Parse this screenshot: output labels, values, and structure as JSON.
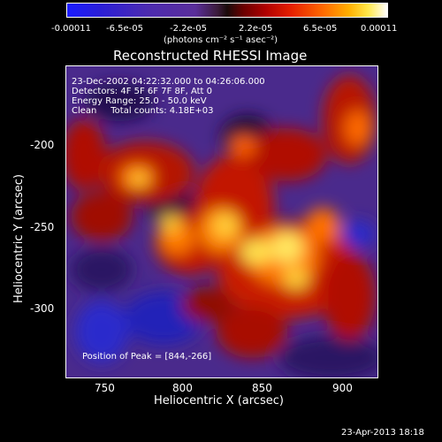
{
  "colorbar": {
    "ticks": [
      "-0.00011",
      "-6.5e-05",
      "-2.2e-05",
      "2.2e-05",
      "6.5e-05",
      "0.00011"
    ],
    "unit_label": "(photons cm⁻² s⁻¹ asec⁻²)"
  },
  "chart_data": {
    "type": "heatmap",
    "title": "Reconstructed RHESSI Image",
    "xlabel": "Heliocentric X (arcsec)",
    "ylabel": "Heliocentric Y (arcsec)",
    "xlim": [
      726,
      918
    ],
    "ylim": [
      -346,
      -154
    ],
    "x_ticks": [
      "750",
      "800",
      "850",
      "900"
    ],
    "y_ticks": [
      "-200",
      "-250",
      "-300"
    ],
    "colorscale": {
      "min": -0.00011,
      "max": 0.00011
    },
    "annotations": {
      "time_range": "23-Dec-2002 04:22:32.000 to 04:26:06.000",
      "detectors": "Detectors: 4F 5F 6F 7F 8F, Att 0",
      "energy": "Energy Range: 25.0 - 50.0 keV",
      "clean": "Clean     Total counts: 4.18E+03",
      "peak": "Position of Peak = [844,-266]"
    }
  },
  "footer": {
    "timestamp": "23-Apr-2013 18:18"
  }
}
